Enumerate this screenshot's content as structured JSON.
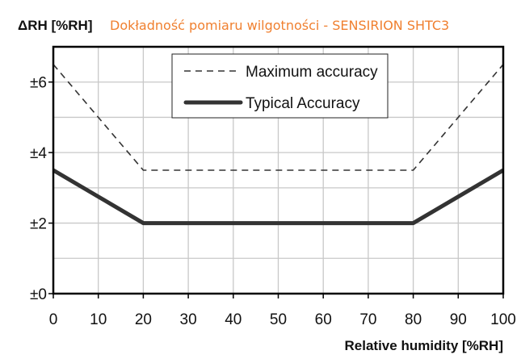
{
  "chart_data": {
    "type": "line",
    "title": "Dokładność pomiaru wilgotności - SENSIRION SHTC3",
    "xlabel": "Relative humidity [%RH]",
    "ylabel": "ΔRH [%RH]",
    "xlim": [
      0,
      100
    ],
    "ylim": [
      0,
      7
    ],
    "xticks": [
      "0",
      "10",
      "20",
      "30",
      "40",
      "50",
      "60",
      "70",
      "80",
      "90",
      "100"
    ],
    "xtick_values": [
      0,
      10,
      20,
      30,
      40,
      50,
      60,
      70,
      80,
      90,
      100
    ],
    "yticks": [
      "±0",
      "±2",
      "±4",
      "±6"
    ],
    "ytick_values": [
      0,
      2,
      4,
      6
    ],
    "grid": true,
    "legend_position": "top-center",
    "series": [
      {
        "name": "Maximum accuracy",
        "style": "dashed",
        "x": [
          0,
          20,
          80,
          100
        ],
        "y": [
          6.5,
          3.5,
          3.5,
          6.5
        ]
      },
      {
        "name": "Typical Accuracy",
        "style": "solid-thick",
        "x": [
          0,
          20,
          80,
          100
        ],
        "y": [
          3.5,
          2,
          2,
          3.5
        ]
      }
    ],
    "colors": {
      "title": "#f08030",
      "line": "#333333",
      "grid": "#c8c8c8"
    }
  }
}
